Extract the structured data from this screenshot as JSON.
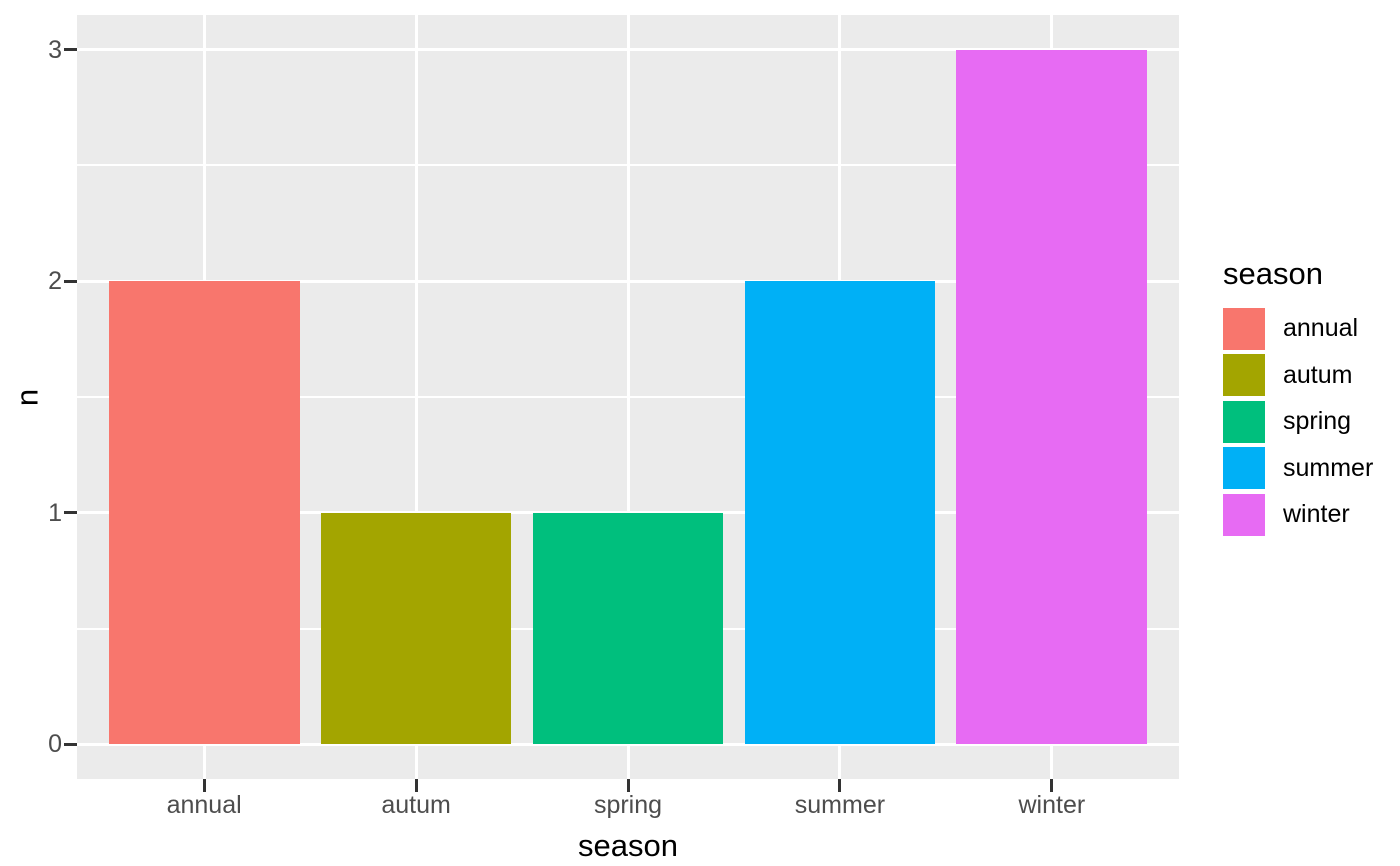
{
  "chart_data": {
    "type": "bar",
    "categories": [
      "annual",
      "autum",
      "spring",
      "summer",
      "winter"
    ],
    "values": [
      2,
      1,
      1,
      2,
      3
    ],
    "bar_colors": [
      "#F8766D",
      "#A3A500",
      "#00BF7D",
      "#00B0F6",
      "#E76BF3"
    ],
    "title": "",
    "xlabel": "season",
    "ylabel": "n",
    "ylim": [
      0,
      3
    ],
    "yticks": [
      0,
      1,
      2,
      3
    ],
    "ytick_labels": [
      "0",
      "1",
      "2",
      "3"
    ],
    "yminor": [
      0.5,
      1.5,
      2.5
    ],
    "grid": true,
    "legend": {
      "title": "season",
      "position": "right",
      "entries": [
        {
          "label": "annual",
          "color": "#F8766D"
        },
        {
          "label": "autum",
          "color": "#A3A500"
        },
        {
          "label": "spring",
          "color": "#00BF7D"
        },
        {
          "label": "summer",
          "color": "#00B0F6"
        },
        {
          "label": "winter",
          "color": "#E76BF3"
        }
      ]
    },
    "colors": {
      "panel_background": "#EBEBEB",
      "gridline": "#FFFFFF",
      "tick_mark": "#333333",
      "tick_label": "#4D4D4D",
      "axis_title": "#000000",
      "figure_background": "#FFFFFF"
    }
  }
}
